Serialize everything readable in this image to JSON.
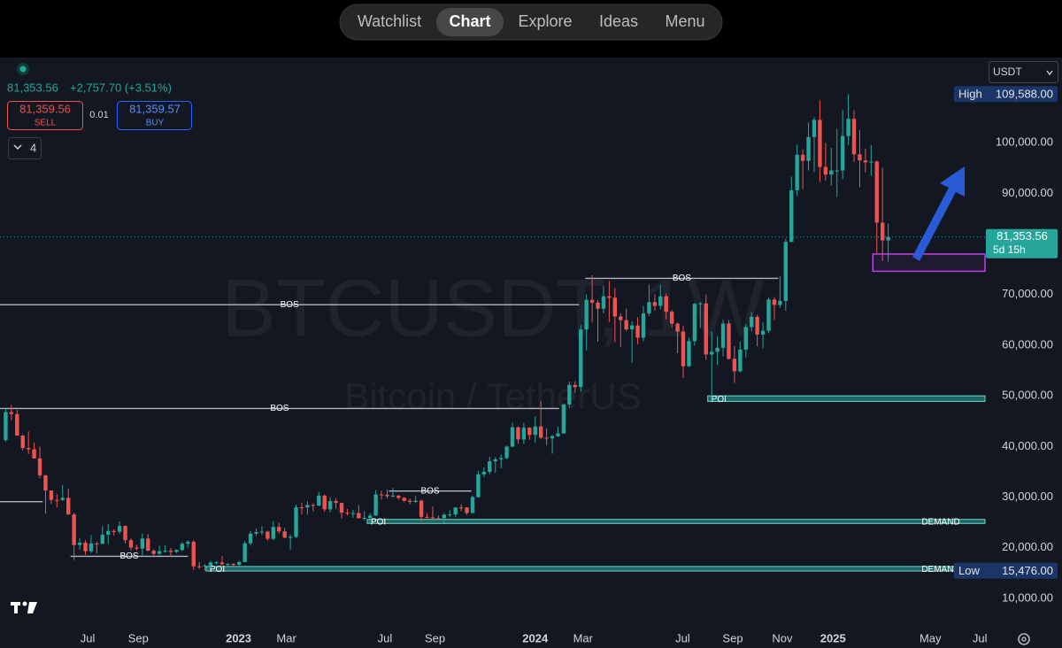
{
  "nav": {
    "items": [
      "Watchlist",
      "Chart",
      "Explore",
      "Ideas",
      "Menu"
    ],
    "active": 1
  },
  "ticker": {
    "change": "+2,757.70 (+3.51%)",
    "sell_price": "81,359.56",
    "sell": "SELL",
    "spread": "0.01",
    "buy_price": "81,359.57",
    "buy": "BUY",
    "indicator_count": "4",
    "currency": "USDT"
  },
  "chart_data": {
    "type": "candlestick",
    "watermark": "BTCUSDT, 1W",
    "watermark_subtitle": "Bitcoin / TetherUS",
    "up_color": "#26a69a",
    "down_color": "#ef5350",
    "open": [
      41260,
      46800,
      46400,
      42150,
      39700,
      39450,
      37630,
      34300,
      31300,
      29450,
      29440,
      29860,
      26570,
      20550,
      20990,
      19300,
      20850,
      20780,
      22580,
      23300,
      23170,
      24300,
      21500,
      20040,
      19830,
      21820,
      19420,
      18800,
      19310,
      19410,
      19180,
      19560,
      20800,
      21160,
      16330,
      16280,
      16450,
      17100,
      17100,
      16750,
      16840,
      16630,
      17180,
      20870,
      22780,
      23080,
      23170,
      21770,
      24120,
      23230,
      22000,
      22150,
      27980,
      27970,
      28450,
      28330,
      30300,
      27600,
      29230,
      28850,
      26920,
      26750,
      26850,
      25830,
      25900,
      26340,
      30530,
      30470,
      30170,
      30300,
      29850,
      29280,
      29050,
      29300,
      26100,
      26000,
      25840,
      25830,
      26520,
      26580,
      27960,
      27940,
      26860,
      29990,
      34500,
      35000,
      37060,
      37450,
      37700,
      39970,
      43780,
      41370,
      43700,
      42280,
      43950,
      41730,
      41600,
      42030,
      42580,
      48300,
      52140,
      51730,
      63100,
      68950,
      68400,
      67200,
      69650,
      69360,
      65660,
      64940,
      63120,
      63900,
      61480,
      66270,
      68510,
      67760,
      69650,
      66600,
      64250,
      62680,
      55850,
      60800,
      68160,
      68250,
      58160,
      58700,
      59480,
      64270,
      57300,
      54850,
      59130,
      63580,
      65600,
      62100,
      62850,
      69020,
      67950,
      68750,
      80400,
      90600,
      97600,
      96400,
      101100,
      104500,
      95200,
      93700,
      94500,
      94500,
      101300,
      104700,
      97700,
      96500,
      96100,
      96250,
      84200,
      80700
    ],
    "high": [
      47500,
      48200,
      47200,
      42400,
      42980,
      40800,
      40000,
      34400,
      31300,
      30600,
      32400,
      31700,
      26900,
      21900,
      21500,
      22500,
      21200,
      24280,
      24700,
      23650,
      25200,
      24450,
      21900,
      20600,
      22800,
      22700,
      19700,
      20400,
      20480,
      19950,
      19700,
      21100,
      21480,
      21450,
      17200,
      16800,
      17400,
      17400,
      18380,
      17000,
      16950,
      17450,
      21300,
      23300,
      23800,
      24250,
      23400,
      25250,
      25000,
      23900,
      22600,
      28500,
      28900,
      29200,
      28800,
      31000,
      30500,
      30000,
      29800,
      28900,
      27650,
      27500,
      28450,
      27200,
      26800,
      31400,
      31300,
      31500,
      31800,
      30400,
      30000,
      29700,
      30200,
      29500,
      26800,
      28150,
      26400,
      26850,
      27450,
      28000,
      28600,
      28000,
      30300,
      35200,
      35900,
      38000,
      37900,
      38400,
      40200,
      44700,
      44000,
      44700,
      43800,
      45900,
      48950,
      43600,
      42300,
      43900,
      48500,
      52800,
      52900,
      64000,
      70000,
      73800,
      68900,
      71700,
      72700,
      71300,
      66300,
      67200,
      64700,
      65500,
      67700,
      71950,
      70000,
      71950,
      70200,
      66980,
      64500,
      63800,
      61500,
      68370,
      68500,
      70000,
      62700,
      61800,
      65000,
      64970,
      59800,
      60700,
      64100,
      66500,
      66000,
      64500,
      69400,
      69500,
      73600,
      81000,
      93300,
      99600,
      98700,
      104000,
      105000,
      108350,
      99900,
      99000,
      102700,
      106400,
      109588,
      106400,
      102500,
      98800,
      99500,
      96500,
      95000,
      84000
    ],
    "low": [
      40900,
      45200,
      42100,
      39200,
      38500,
      37600,
      33700,
      26700,
      28600,
      28000,
      29300,
      26560,
      17600,
      19600,
      18600,
      19000,
      18900,
      20750,
      20700,
      22400,
      22700,
      20800,
      19500,
      19500,
      18500,
      19320,
      18100,
      18500,
      19000,
      18200,
      18900,
      19300,
      20000,
      15600,
      15800,
      15476,
      16000,
      16750,
      16500,
      16400,
      16300,
      16500,
      17150,
      20400,
      22300,
      22500,
      21400,
      21500,
      22700,
      21900,
      19600,
      21900,
      26600,
      26500,
      27200,
      28200,
      27100,
      26950,
      27700,
      25800,
      26400,
      25900,
      25800,
      25350,
      24800,
      26250,
      29500,
      29700,
      29900,
      29500,
      29000,
      28600,
      28800,
      25200,
      25800,
      25700,
      25400,
      24900,
      26000,
      26000,
      27200,
      26500,
      26800,
      29900,
      33900,
      34500,
      34800,
      35700,
      37500,
      39900,
      40500,
      40500,
      41300,
      40750,
      41500,
      40300,
      38550,
      41900,
      42500,
      47700,
      50600,
      50900,
      59000,
      64500,
      60700,
      66300,
      64600,
      60600,
      59600,
      62800,
      56550,
      60200,
      60750,
      65800,
      66800,
      67100,
      65100,
      63400,
      58400,
      53500,
      55700,
      59900,
      63400,
      57100,
      49000,
      56100,
      57800,
      57200,
      52550,
      54600,
      57600,
      62700,
      59800,
      59400,
      62400,
      65000,
      67400,
      66800,
      80300,
      89400,
      90800,
      94500,
      94200,
      92200,
      92500,
      91500,
      89250,
      92800,
      99500,
      96200,
      91200,
      94100,
      93400,
      78200,
      76600,
      76500
    ],
    "close": [
      46800,
      46400,
      42150,
      39700,
      39450,
      37630,
      34300,
      31300,
      29450,
      29440,
      29860,
      26570,
      20550,
      20990,
      19300,
      20850,
      20780,
      22580,
      23300,
      23170,
      24300,
      21500,
      20040,
      19830,
      21820,
      19420,
      18800,
      19310,
      19410,
      19180,
      19560,
      20800,
      21160,
      16330,
      16280,
      16450,
      17100,
      17100,
      16750,
      16840,
      16630,
      17180,
      20870,
      22780,
      23080,
      23170,
      21770,
      24120,
      23230,
      22000,
      22150,
      27980,
      27970,
      28450,
      28330,
      30300,
      27600,
      29230,
      28850,
      26920,
      26750,
      26850,
      25830,
      25900,
      26340,
      30530,
      30470,
      30170,
      30300,
      29850,
      29280,
      29050,
      29300,
      26100,
      26000,
      25840,
      25830,
      26520,
      26580,
      27960,
      27940,
      26860,
      29990,
      34500,
      35000,
      37060,
      37450,
      37700,
      39970,
      43780,
      41370,
      43700,
      42280,
      43950,
      41730,
      41600,
      42030,
      42580,
      48300,
      52140,
      51730,
      63100,
      68950,
      68400,
      67200,
      69650,
      69360,
      65660,
      64940,
      63120,
      63900,
      61480,
      66270,
      68510,
      67760,
      69650,
      66600,
      64250,
      62680,
      55850,
      60800,
      68160,
      68250,
      58160,
      58700,
      59480,
      64270,
      57300,
      54850,
      59130,
      63580,
      65600,
      62100,
      62850,
      69020,
      67950,
      68750,
      80400,
      90600,
      97600,
      96400,
      101100,
      104500,
      95200,
      93700,
      94500,
      94500,
      101300,
      104700,
      97700,
      96500,
      96100,
      96250,
      84200,
      80700,
      81353.56
    ],
    "xlim": [
      -1,
      172
    ],
    "xticks": [
      {
        "value": 14.4,
        "label": "Jul"
      },
      {
        "value": 23.3,
        "label": "Sep"
      },
      {
        "value": 40.9,
        "label": "2023"
      },
      {
        "value": 49.3,
        "label": "Mar"
      },
      {
        "value": 66.6,
        "label": "Jul"
      },
      {
        "value": 75.4,
        "label": "Sep"
      },
      {
        "value": 93.0,
        "label": "2024"
      },
      {
        "value": 101.4,
        "label": "Mar"
      },
      {
        "value": 118.9,
        "label": "Jul"
      },
      {
        "value": 127.7,
        "label": "Sep"
      },
      {
        "value": 136.4,
        "label": "Nov"
      },
      {
        "value": 145.3,
        "label": "2025"
      },
      {
        "value": 162.4,
        "label": "May"
      },
      {
        "value": 171.1,
        "label": "Jul"
      }
    ],
    "ylim": [
      4400,
      116800
    ],
    "yticks": [
      {
        "value": 10000,
        "label": "10,000.00"
      },
      {
        "value": 20000,
        "label": "20,000.00"
      },
      {
        "value": 30000,
        "label": "30,000.00"
      },
      {
        "value": 40000,
        "label": "40,000.00"
      },
      {
        "value": 50000,
        "label": "50,000.00"
      },
      {
        "value": 60000,
        "label": "60,000.00"
      },
      {
        "value": 70000,
        "label": "70,000.00"
      },
      {
        "value": 90000,
        "label": "90,000.00"
      },
      {
        "value": 100000,
        "label": "100,000.00"
      }
    ],
    "last_price": {
      "value": 81353.56,
      "label": "81,353.56"
    },
    "countdown": "5d 15h",
    "high_marker": {
      "name": "High",
      "value": 109588,
      "label": "109,588.00"
    },
    "low_marker": {
      "name": "Low",
      "value": 15476,
      "label": "15,476.00"
    },
    "levels": [
      {
        "label": "BOS",
        "y": 68000,
        "x": [
          -1,
          100.7
        ]
      },
      {
        "label": "BOS",
        "y": 47500,
        "x": [
          -1,
          97.2
        ]
      },
      {
        "y": 29100,
        "x": [
          -1,
          6.5
        ]
      },
      {
        "label": "BOS",
        "y": 18300,
        "x": [
          11.4,
          32.0
        ]
      },
      {
        "label": "BOS",
        "y": 31200,
        "x": [
          67.3,
          81.8
        ]
      },
      {
        "label": "BOS",
        "y": 73200,
        "x": [
          101.8,
          135.7
        ]
      }
    ],
    "zones": [
      {
        "top": 50000,
        "bottom": 48900,
        "x": [
          123.3,
          172
        ],
        "labels": [
          "POI"
        ]
      },
      {
        "top": 25600,
        "bottom": 24800,
        "x": [
          63.5,
          172
        ],
        "labels": [
          "POI",
          "DEMAND"
        ]
      },
      {
        "top": 16300,
        "bottom": 15400,
        "x": [
          35.2,
          172
        ],
        "labels": [
          "POI",
          "DEMAND"
        ]
      }
    ],
    "box": {
      "top": 78000,
      "bottom": 74600,
      "x": [
        152.3,
        172
      ],
      "color": "#c040e8"
    }
  }
}
